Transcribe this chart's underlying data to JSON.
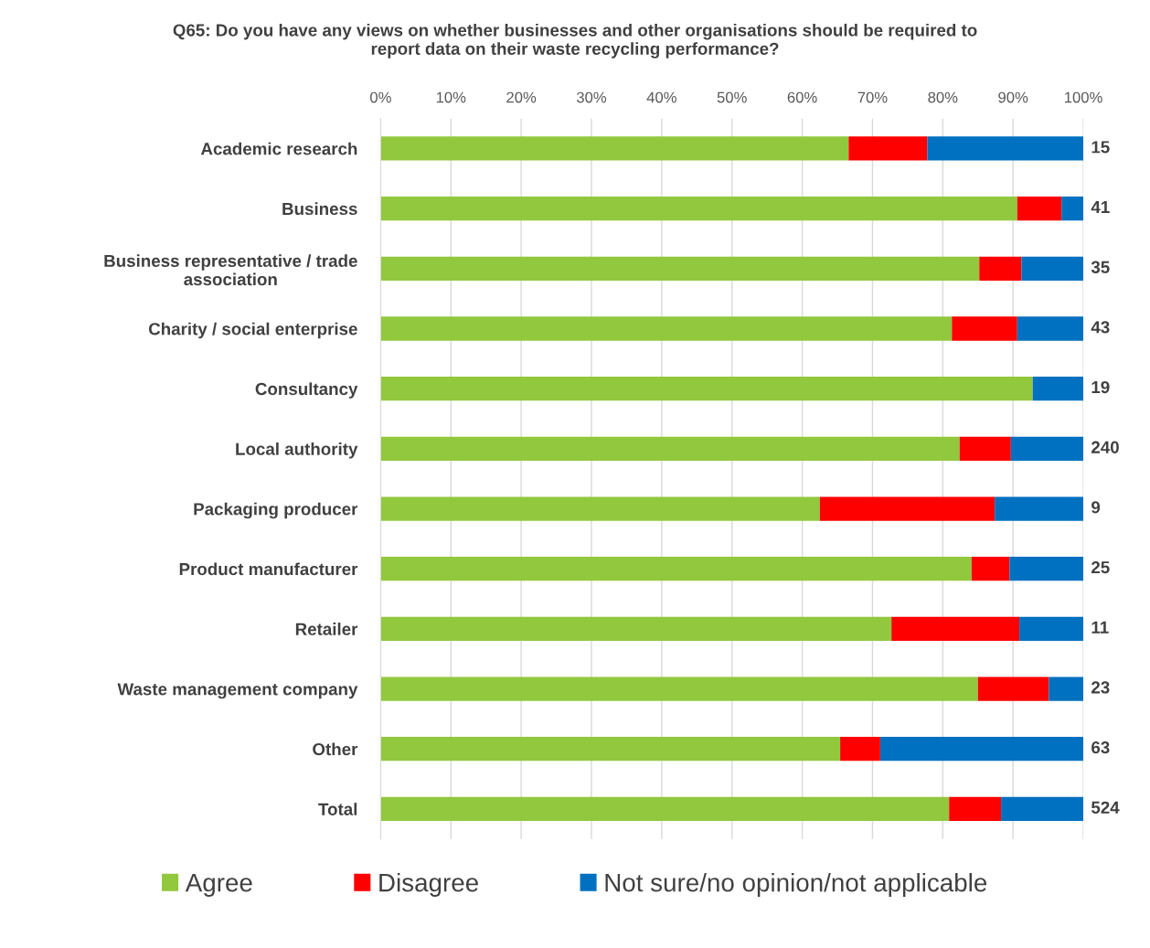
{
  "chart_data": {
    "type": "bar",
    "orientation": "horizontal",
    "stacked": true,
    "title": "Q65: Do you have any views on whether businesses and other organisations should be required to\nreport data on their waste recycling performance?",
    "categories": [
      "Academic research",
      "Business",
      "Business representative / trade\nassociation",
      "Charity / social enterprise",
      "Consultancy",
      "Local authority",
      "Packaging producer",
      "Product manufacturer",
      "Retailer",
      "Waste management company",
      "Other",
      "Total"
    ],
    "series": [
      {
        "name": "Agree",
        "color": "#92c83e",
        "values": [
          66.6,
          90.6,
          85.2,
          81.3,
          92.8,
          82.4,
          62.5,
          84.1,
          72.7,
          85.0,
          65.4,
          80.9
        ]
      },
      {
        "name": "Disagree",
        "color": "#ff0000",
        "values": [
          11.2,
          6.3,
          6.0,
          9.3,
          0,
          7.3,
          24.9,
          5.4,
          18.2,
          10.1,
          5.7,
          7.4
        ]
      },
      {
        "name": "Not sure/no opinion/not applicable",
        "color": "#0070c0",
        "values": [
          22.2,
          3.1,
          8.8,
          9.4,
          7.2,
          10.3,
          12.6,
          10.5,
          9.1,
          4.9,
          28.9,
          11.7
        ]
      }
    ],
    "xlim": [
      0,
      100
    ],
    "xticks": [
      {
        "value": 0,
        "label": "0%"
      },
      {
        "value": 10,
        "label": "10%"
      },
      {
        "value": 20,
        "label": "20%"
      },
      {
        "value": 30,
        "label": "30%"
      },
      {
        "value": 40,
        "label": "40%"
      },
      {
        "value": 50,
        "label": "50%"
      },
      {
        "value": 60,
        "label": "60%"
      },
      {
        "value": 70,
        "label": "70%"
      },
      {
        "value": 80,
        "label": "80%"
      },
      {
        "value": 90,
        "label": "90%"
      },
      {
        "value": 100,
        "label": "100%"
      }
    ],
    "annotations": [
      "15",
      "41",
      "35",
      "43",
      "19",
      "240",
      "9",
      "25",
      "11",
      "23",
      "63",
      "524"
    ],
    "grid": "x",
    "legend": "bottom"
  }
}
